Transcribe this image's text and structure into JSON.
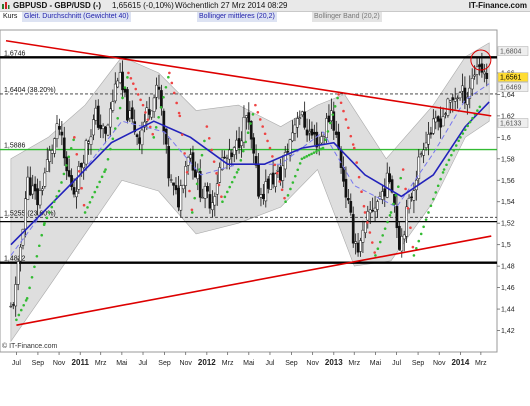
{
  "header": {
    "symbol_title": "GBPUSD - GBP/USD (-)",
    "quote": "1,65615 (-0,10%)",
    "timestamp": "Wöchentlich  27 Mrz 2014 08:29",
    "brand": "IT-Finance.com"
  },
  "legend": {
    "items": [
      {
        "label": "Kurs",
        "color": "#111111",
        "bg": "#ffffff"
      },
      {
        "label": "Gleit. Durchschnitt (Gewichtet 40)",
        "color": "#2222aa",
        "bg": "#dde3f3"
      },
      {
        "label": "Bollinger mittleres (20,2)",
        "color": "#2222aa",
        "bg": "#dde3f3"
      },
      {
        "label": "Bollinger Band (20,2)",
        "color": "#777777",
        "bg": "#e4e4e4"
      }
    ]
  },
  "footer": {
    "copyright": "© IT-Finance.com"
  },
  "colors": {
    "candle_up": "#ffffff",
    "candle_down": "#111111",
    "band_fill": "#d3d3d3",
    "wma": "#2222bb",
    "bollinger_mid": "#7777ee",
    "trendline": "#dd0000",
    "sar_up": "#33bb33",
    "sar_down": "#ee4444",
    "support_green": "#33bb33",
    "level_black": "#000000"
  },
  "chart_data": {
    "type": "candlestick",
    "period": "weekly",
    "x_range": [
      "2010-06",
      "2014-03"
    ],
    "ylim": [
      1.4,
      1.7
    ],
    "y_ticks": [
      "1,42",
      "1,44",
      "1,46",
      "1,48",
      "1,5",
      "1,52",
      "1,54",
      "1,56",
      "1,58",
      "1,6",
      "1,62",
      "1,64",
      "1,66"
    ],
    "x_ticks": [
      {
        "label": "Jul",
        "date": "2010-07"
      },
      {
        "label": "Sep",
        "date": "2010-09"
      },
      {
        "label": "Nov",
        "date": "2010-11"
      },
      {
        "label": "2011",
        "date": "2011-01",
        "bold": true
      },
      {
        "label": "Mrz",
        "date": "2011-03"
      },
      {
        "label": "Mai",
        "date": "2011-05"
      },
      {
        "label": "Jul",
        "date": "2011-07"
      },
      {
        "label": "Sep",
        "date": "2011-09"
      },
      {
        "label": "Nov",
        "date": "2011-11"
      },
      {
        "label": "2012",
        "date": "2012-01",
        "bold": true
      },
      {
        "label": "Mrz",
        "date": "2012-03"
      },
      {
        "label": "Mai",
        "date": "2012-05"
      },
      {
        "label": "Jul",
        "date": "2012-07"
      },
      {
        "label": "Sep",
        "date": "2012-09"
      },
      {
        "label": "Nov",
        "date": "2012-11"
      },
      {
        "label": "2013",
        "date": "2013-01",
        "bold": true
      },
      {
        "label": "Mrz",
        "date": "2013-03"
      },
      {
        "label": "Mai",
        "date": "2013-05"
      },
      {
        "label": "Jul",
        "date": "2013-07"
      },
      {
        "label": "Sep",
        "date": "2013-09"
      },
      {
        "label": "Nov",
        "date": "2013-11"
      },
      {
        "label": "2014",
        "date": "2014-01",
        "bold": true
      },
      {
        "label": "Mrz",
        "date": "2014-03"
      }
    ],
    "close_path": [
      {
        "d": "2010-06-15",
        "v": 1.44
      },
      {
        "d": "2010-07-01",
        "v": 1.46
      },
      {
        "d": "2010-08-01",
        "v": 1.56
      },
      {
        "d": "2010-09-01",
        "v": 1.54
      },
      {
        "d": "2010-10-01",
        "v": 1.58
      },
      {
        "d": "2010-11-01",
        "v": 1.61
      },
      {
        "d": "2010-11-20",
        "v": 1.57
      },
      {
        "d": "2010-12-15",
        "v": 1.55
      },
      {
        "d": "2011-01-15",
        "v": 1.59
      },
      {
        "d": "2011-02-15",
        "v": 1.62
      },
      {
        "d": "2011-03-15",
        "v": 1.6
      },
      {
        "d": "2011-04-20",
        "v": 1.66
      },
      {
        "d": "2011-05-20",
        "v": 1.62
      },
      {
        "d": "2011-06-20",
        "v": 1.6
      },
      {
        "d": "2011-07-20",
        "v": 1.63
      },
      {
        "d": "2011-08-15",
        "v": 1.645
      },
      {
        "d": "2011-09-15",
        "v": 1.56
      },
      {
        "d": "2011-10-10",
        "v": 1.54
      },
      {
        "d": "2011-11-10",
        "v": 1.59
      },
      {
        "d": "2011-12-15",
        "v": 1.55
      },
      {
        "d": "2012-01-15",
        "v": 1.54
      },
      {
        "d": "2012-02-15",
        "v": 1.58
      },
      {
        "d": "2012-03-15",
        "v": 1.58
      },
      {
        "d": "2012-04-25",
        "v": 1.62
      },
      {
        "d": "2012-06-01",
        "v": 1.545
      },
      {
        "d": "2012-07-01",
        "v": 1.56
      },
      {
        "d": "2012-08-01",
        "v": 1.565
      },
      {
        "d": "2012-09-20",
        "v": 1.625
      },
      {
        "d": "2012-10-20",
        "v": 1.605
      },
      {
        "d": "2012-11-20",
        "v": 1.595
      },
      {
        "d": "2012-12-25",
        "v": 1.625
      },
      {
        "d": "2013-01-25",
        "v": 1.57
      },
      {
        "d": "2013-02-25",
        "v": 1.51
      },
      {
        "d": "2013-03-15",
        "v": 1.495
      },
      {
        "d": "2013-04-15",
        "v": 1.53
      },
      {
        "d": "2013-05-15",
        "v": 1.545
      },
      {
        "d": "2013-06-15",
        "v": 1.565
      },
      {
        "d": "2013-07-10",
        "v": 1.5
      },
      {
        "d": "2013-08-15",
        "v": 1.55
      },
      {
        "d": "2013-09-20",
        "v": 1.6
      },
      {
        "d": "2013-10-20",
        "v": 1.61
      },
      {
        "d": "2013-11-20",
        "v": 1.625
      },
      {
        "d": "2013-12-20",
        "v": 1.64
      },
      {
        "d": "2014-01-20",
        "v": 1.64
      },
      {
        "d": "2014-02-20",
        "v": 1.67
      },
      {
        "d": "2014-03-20",
        "v": 1.656
      }
    ],
    "overlays": {
      "wma40": [
        {
          "d": "2010-06-15",
          "v": 1.5
        },
        {
          "d": "2010-12-01",
          "v": 1.555
        },
        {
          "d": "2011-04-01",
          "v": 1.595
        },
        {
          "d": "2011-08-01",
          "v": 1.615
        },
        {
          "d": "2011-11-15",
          "v": 1.6
        },
        {
          "d": "2012-03-01",
          "v": 1.575
        },
        {
          "d": "2012-06-15",
          "v": 1.575
        },
        {
          "d": "2012-10-01",
          "v": 1.59
        },
        {
          "d": "2013-01-01",
          "v": 1.595
        },
        {
          "d": "2013-04-01",
          "v": 1.565
        },
        {
          "d": "2013-07-15",
          "v": 1.545
        },
        {
          "d": "2013-10-15",
          "v": 1.565
        },
        {
          "d": "2014-01-15",
          "v": 1.61
        },
        {
          "d": "2014-03-25",
          "v": 1.633
        }
      ],
      "bollinger_mid": [
        {
          "d": "2010-06-15",
          "v": 1.49
        },
        {
          "d": "2010-09-15",
          "v": 1.53
        },
        {
          "d": "2011-01-01",
          "v": 1.565
        },
        {
          "d": "2011-05-01",
          "v": 1.615
        },
        {
          "d": "2011-09-01",
          "v": 1.605
        },
        {
          "d": "2011-12-15",
          "v": 1.565
        },
        {
          "d": "2012-04-01",
          "v": 1.575
        },
        {
          "d": "2012-08-01",
          "v": 1.575
        },
        {
          "d": "2012-12-01",
          "v": 1.605
        },
        {
          "d": "2013-03-01",
          "v": 1.555
        },
        {
          "d": "2013-07-01",
          "v": 1.535
        },
        {
          "d": "2013-10-15",
          "v": 1.585
        },
        {
          "d": "2014-01-15",
          "v": 1.635
        },
        {
          "d": "2014-03-25",
          "v": 1.65
        }
      ],
      "bollinger_upper": [
        {
          "d": "2010-06-15",
          "v": 1.58
        },
        {
          "d": "2010-10-01",
          "v": 1.6
        },
        {
          "d": "2011-01-15",
          "v": 1.63
        },
        {
          "d": "2011-05-01",
          "v": 1.675
        },
        {
          "d": "2011-08-15",
          "v": 1.66
        },
        {
          "d": "2011-12-01",
          "v": 1.625
        },
        {
          "d": "2012-04-01",
          "v": 1.63
        },
        {
          "d": "2012-08-01",
          "v": 1.61
        },
        {
          "d": "2012-11-15",
          "v": 1.63
        },
        {
          "d": "2013-02-01",
          "v": 1.64
        },
        {
          "d": "2013-06-01",
          "v": 1.58
        },
        {
          "d": "2013-10-15",
          "v": 1.63
        },
        {
          "d": "2014-01-15",
          "v": 1.675
        },
        {
          "d": "2014-03-25",
          "v": 1.688
        }
      ],
      "bollinger_lower": [
        {
          "d": "2010-06-15",
          "v": 1.41
        },
        {
          "d": "2010-10-01",
          "v": 1.46
        },
        {
          "d": "2011-01-15",
          "v": 1.51
        },
        {
          "d": "2011-05-01",
          "v": 1.56
        },
        {
          "d": "2011-08-15",
          "v": 1.55
        },
        {
          "d": "2011-12-01",
          "v": 1.51
        },
        {
          "d": "2012-04-01",
          "v": 1.52
        },
        {
          "d": "2012-08-01",
          "v": 1.535
        },
        {
          "d": "2012-11-15",
          "v": 1.57
        },
        {
          "d": "2013-03-01",
          "v": 1.48
        },
        {
          "d": "2013-06-15",
          "v": 1.485
        },
        {
          "d": "2013-10-15",
          "v": 1.54
        },
        {
          "d": "2014-01-15",
          "v": 1.6
        },
        {
          "d": "2014-03-25",
          "v": 1.615
        }
      ]
    },
    "sar_points": [
      {
        "d": "2010-07-01",
        "v": 1.43,
        "s": "up"
      },
      {
        "d": "2010-08-01",
        "v": 1.45,
        "s": "up"
      },
      {
        "d": "2010-09-20",
        "v": 1.52,
        "s": "up"
      },
      {
        "d": "2010-11-01",
        "v": 1.55,
        "s": "up"
      },
      {
        "d": "2010-12-15",
        "v": 1.6,
        "s": "down"
      },
      {
        "d": "2011-01-15",
        "v": 1.53,
        "s": "up"
      },
      {
        "d": "2011-03-15",
        "v": 1.57,
        "s": "up"
      },
      {
        "d": "2011-05-20",
        "v": 1.66,
        "s": "down"
      },
      {
        "d": "2011-07-01",
        "v": 1.63,
        "s": "down"
      },
      {
        "d": "2011-08-01",
        "v": 1.6,
        "s": "up"
      },
      {
        "d": "2011-09-15",
        "v": 1.66,
        "s": "down"
      },
      {
        "d": "2011-10-15",
        "v": 1.62,
        "s": "down"
      },
      {
        "d": "2011-11-20",
        "v": 1.53,
        "s": "up"
      },
      {
        "d": "2012-01-01",
        "v": 1.61,
        "s": "down"
      },
      {
        "d": "2012-02-15",
        "v": 1.54,
        "s": "up"
      },
      {
        "d": "2012-04-01",
        "v": 1.57,
        "s": "up"
      },
      {
        "d": "2012-05-20",
        "v": 1.63,
        "s": "down"
      },
      {
        "d": "2012-07-01",
        "v": 1.59,
        "s": "down"
      },
      {
        "d": "2012-08-15",
        "v": 1.54,
        "s": "up"
      },
      {
        "d": "2012-10-01",
        "v": 1.58,
        "s": "up"
      },
      {
        "d": "2012-12-01",
        "v": 1.59,
        "s": "up"
      },
      {
        "d": "2013-01-15",
        "v": 1.64,
        "s": "down"
      },
      {
        "d": "2013-03-01",
        "v": 1.59,
        "s": "down"
      },
      {
        "d": "2013-04-01",
        "v": 1.53,
        "s": "down"
      },
      {
        "d": "2013-05-01",
        "v": 1.49,
        "s": "up"
      },
      {
        "d": "2013-06-15",
        "v": 1.53,
        "s": "up"
      },
      {
        "d": "2013-07-20",
        "v": 1.57,
        "s": "down"
      },
      {
        "d": "2013-08-20",
        "v": 1.49,
        "s": "up"
      },
      {
        "d": "2013-10-01",
        "v": 1.53,
        "s": "up"
      },
      {
        "d": "2013-11-15",
        "v": 1.57,
        "s": "up"
      },
      {
        "d": "2014-01-01",
        "v": 1.6,
        "s": "up"
      },
      {
        "d": "2014-03-01",
        "v": 1.63,
        "s": "up"
      }
    ],
    "sar_up_color": "#33bb33",
    "sar_down_color": "#ee4444",
    "horizontal_levels": [
      {
        "label": "1,6746",
        "value": 1.6746,
        "style": "thick",
        "color": "#000000"
      },
      {
        "label": "1,6404 (38.20%)",
        "value": 1.6404,
        "style": "dashed",
        "color": "#333333"
      },
      {
        "label": "1,5886",
        "value": 1.5886,
        "style": "solid",
        "color": "#33bb33"
      },
      {
        "label": "1,5255 (23.60%)",
        "value": 1.5255,
        "style": "dashed",
        "color": "#333333"
      },
      {
        "label": "",
        "value": 1.5215,
        "style": "solid",
        "color": "#000000"
      },
      {
        "label": "1,4832",
        "value": 1.4832,
        "style": "thick",
        "color": "#000000"
      }
    ],
    "trendlines": [
      {
        "name": "resistance",
        "from": {
          "d": "2010-06-01",
          "v": 1.69
        },
        "to": {
          "d": "2014-03-31",
          "v": 1.62
        },
        "color": "#dd0000"
      },
      {
        "name": "support",
        "from": {
          "d": "2010-07-01",
          "v": 1.425
        },
        "to": {
          "d": "2014-03-31",
          "v": 1.508
        },
        "color": "#dd0000"
      }
    ],
    "price_boxes": [
      {
        "label": "1,6804",
        "value": 1.6804,
        "bg": "#eeeeee",
        "color": "#555555"
      },
      {
        "label": "1,6561",
        "value": 1.6561,
        "bg": "#ffdd33",
        "color": "#000000"
      },
      {
        "label": "1,6469",
        "value": 1.6469,
        "bg": "#eeeeee",
        "color": "#555555"
      },
      {
        "label": "1,6133",
        "value": 1.6133,
        "bg": "#eeeeee",
        "color": "#555555"
      }
    ],
    "highlight": {
      "d": "2014-03-01",
      "v": 1.672,
      "color": "#dd0000"
    }
  }
}
